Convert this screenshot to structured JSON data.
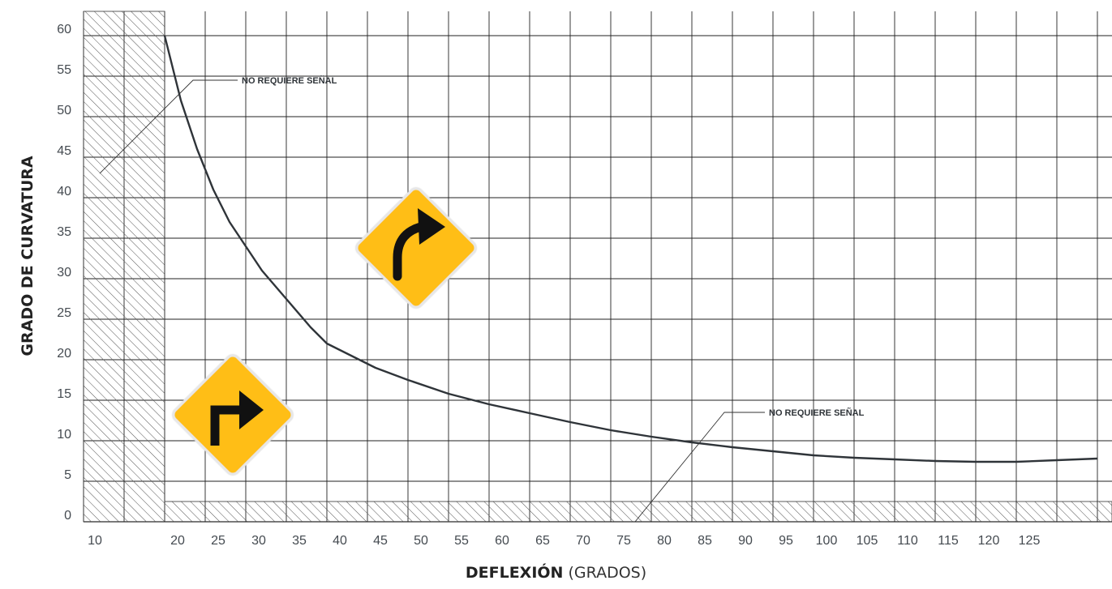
{
  "chart_data": {
    "type": "line",
    "title": "",
    "xlabel_bold": "DEFLEXIÓN",
    "xlabel_light": "(GRADOS)",
    "ylabel": "GRADO DE CURVATURA",
    "xlim": [
      10,
      135
    ],
    "ylim": [
      0,
      60
    ],
    "x_ticks": [
      "10",
      "20",
      "25",
      "30",
      "35",
      "40",
      "45",
      "50",
      "55",
      "60",
      "65",
      "70",
      "75",
      "80",
      "85",
      "90",
      "95",
      "100",
      "105",
      "110",
      "115",
      "120",
      "125"
    ],
    "y_ticks": [
      "0",
      "5",
      "10",
      "15",
      "20",
      "25",
      "30",
      "35",
      "40",
      "45",
      "50",
      "55",
      "60"
    ],
    "grid": true,
    "series": [
      {
        "x": [
          20,
          22,
          24,
          26,
          28,
          30,
          32,
          35,
          38,
          40,
          43,
          46,
          50,
          55,
          60,
          65,
          70,
          75,
          80,
          85,
          90,
          95,
          100,
          105,
          110,
          115,
          120,
          125,
          130,
          135
        ],
        "y": [
          60,
          52,
          46,
          41,
          37,
          34,
          31,
          27.5,
          24,
          22,
          20.5,
          19,
          17.5,
          15.8,
          14.5,
          13.4,
          12.3,
          11.3,
          10.5,
          9.8,
          9.2,
          8.7,
          8.2,
          7.9,
          7.7,
          7.5,
          7.4,
          7.4,
          7.6,
          7.8
        ]
      }
    ],
    "annotations": [
      {
        "text": "NO REQUIERE SEÑAL",
        "x": 28,
        "y": 52
      },
      {
        "text": "NO REQUIERE SEÑAL",
        "x": 93,
        "y": 13
      }
    ]
  },
  "signs": [
    {
      "name": "curve-right-sign",
      "icon": "curve-arrow-right-icon",
      "color": "#FFBE12"
    },
    {
      "name": "turn-right-sign",
      "icon": "turn-arrow-right-icon",
      "color": "#FFBE12"
    }
  ]
}
